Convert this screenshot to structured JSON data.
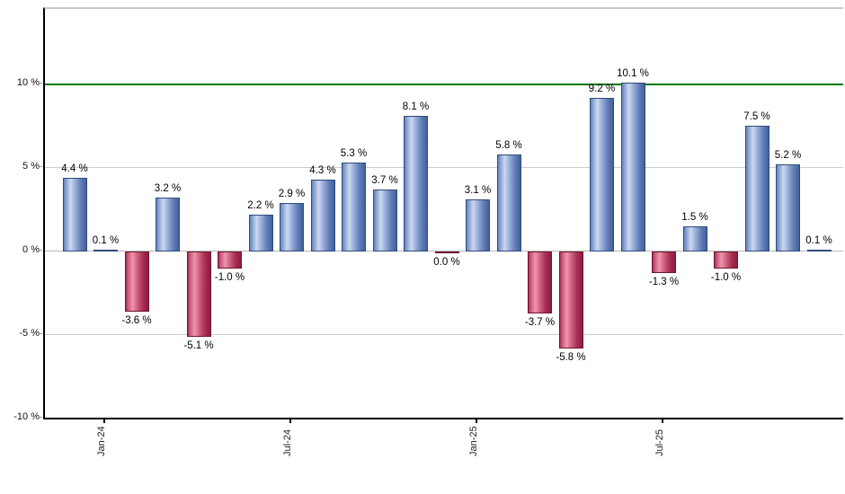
{
  "chart_data": {
    "type": "bar",
    "title": "",
    "xlabel": "",
    "ylabel": "",
    "unit": "%",
    "values": [
      4.4,
      0.1,
      -3.6,
      3.2,
      -5.1,
      -1.0,
      2.2,
      2.9,
      4.3,
      5.3,
      3.7,
      8.1,
      0.0,
      3.1,
      5.8,
      -3.7,
      -5.8,
      9.2,
      10.1,
      -1.3,
      1.5,
      -1.0,
      7.5,
      5.2,
      0.1
    ],
    "bar_labels": [
      "4.4 %",
      "0.1 %",
      "-3.6 %",
      "3.2 %",
      "-5.1 %",
      "-1.0 %",
      "2.2 %",
      "2.9 %",
      "4.3 %",
      "5.3 %",
      "3.7 %",
      "8.1 %",
      "0.0 %",
      "3.1 %",
      "5.8 %",
      "-3.7 %",
      "-5.8 %",
      "9.2 %",
      "10.1 %",
      "-1.3 %",
      "1.5 %",
      "-1.0 %",
      "7.5 %",
      "5.2 %",
      "0.1 %"
    ],
    "x_tick_labels": [
      {
        "index": 1,
        "label": "Jan-24"
      },
      {
        "index": 7,
        "label": "Jul-24"
      },
      {
        "index": 13,
        "label": "Jan-25"
      },
      {
        "index": 19,
        "label": "Jul-25"
      }
    ],
    "y_ticks": [
      {
        "value": 10,
        "label": "10 %"
      },
      {
        "value": 5,
        "label": "5 %"
      },
      {
        "value": 0,
        "label": "0 %"
      },
      {
        "value": -5,
        "label": "-5 %"
      },
      {
        "value": -10,
        "label": "-10 %"
      }
    ],
    "ylim": [
      -10,
      14.5
    ],
    "reference_line": {
      "value": 10,
      "color": "#007800"
    },
    "grid": true,
    "legend": false,
    "colors": {
      "positive_bar": "#7f9bd1",
      "positive_border": "#2e4c7c",
      "negative_bar": "#c0476c",
      "negative_border": "#701534",
      "reference_line": "#007800",
      "gridline": "#cccccc",
      "axis": "#000000",
      "plot_top_border": "#c9c9c9",
      "background": "#ffffff"
    }
  }
}
